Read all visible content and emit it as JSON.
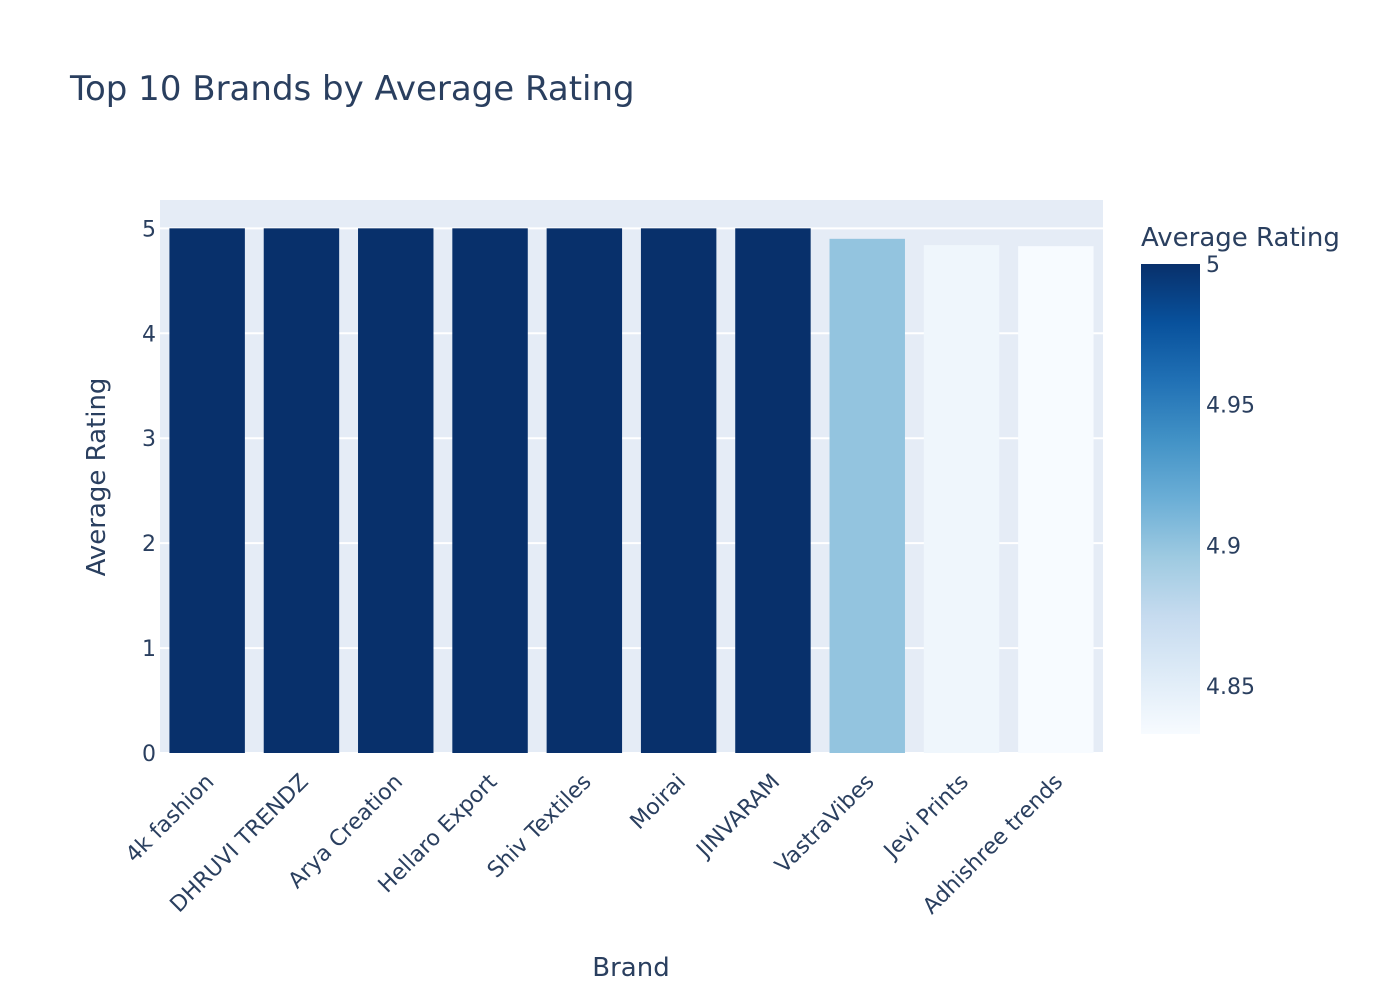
{
  "chart_data": {
    "type": "bar",
    "title": "Top 10 Brands by Average Rating",
    "xlabel": "Brand",
    "ylabel": "Average Rating",
    "categories": [
      "4k fashion",
      "DHRUVI TRENDZ",
      "Arya Creation",
      "Hellaro Export",
      "Shiv Textiles",
      "Moirai",
      "JINVARAM",
      "VastraVibes",
      "Jevi Prints",
      "Adhishree trends"
    ],
    "values": [
      5.0,
      5.0,
      5.0,
      5.0,
      5.0,
      5.0,
      5.0,
      4.9,
      4.84,
      4.83
    ],
    "ylim": [
      0,
      5.27
    ],
    "yticks": [
      0,
      1,
      2,
      3,
      4,
      5
    ],
    "grid": true,
    "colorbar": {
      "title": "Average Rating",
      "range": [
        4.833,
        5.0
      ],
      "ticks": [
        4.85,
        4.9,
        4.95,
        5
      ],
      "colorscale": [
        "#f7fbff",
        "#deebf7",
        "#c6dbef",
        "#9ecae1",
        "#6baed6",
        "#4292c6",
        "#2171b5",
        "#08519c",
        "#08306b"
      ]
    },
    "colors": {
      "plot_bg": "#e5ecf6",
      "grid": "#ffffff",
      "text": "#2a3f5f"
    }
  }
}
